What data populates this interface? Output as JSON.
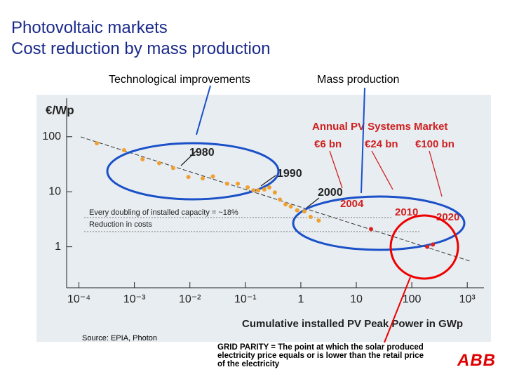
{
  "title": "Photovoltaic markets",
  "subtitle": "Cost reduction by mass production",
  "label_left": "Technological improvements",
  "label_right": "Mass production",
  "source": "Source: EPIA, Photon",
  "note": "GRID PARITY = The point at which the solar produced electricity price equals or is lower than the retail price of the electricity",
  "logo": "ABB",
  "chart_data": {
    "type": "scatter",
    "y_label": "€/Wp",
    "x_label": "Cumulative installed PV Peak Power in GWp",
    "x_log": true,
    "y_log": true,
    "xlim": [
      6e-05,
      2000
    ],
    "ylim": [
      0.18,
      500
    ],
    "xticks": [
      {
        "value": 0.0001,
        "label": "10⁻⁴"
      },
      {
        "value": 0.001,
        "label": "10⁻³"
      },
      {
        "value": 0.01,
        "label": "10⁻²"
      },
      {
        "value": 0.1,
        "label": "10⁻¹"
      },
      1,
      10,
      100,
      {
        "value": 1000,
        "label": "10³"
      }
    ],
    "yticks": [
      1,
      10,
      100
    ],
    "annotations": [
      "1980",
      "1990",
      "2000",
      "2004",
      "2010",
      "2020",
      "Annual PV Systems Market",
      "€6 bn",
      "€24 bn",
      "€100 bn",
      "Every doubling of installed capacity = ~18%",
      "Reduction in costs"
    ],
    "series": [
      {
        "color": "#f0a030",
        "x": [
          0.00021,
          0.00065,
          0.0014,
          0.0028,
          0.005,
          0.0094,
          0.017,
          0.026,
          0.047,
          0.073,
          0.11,
          0.14,
          0.17,
          0.22,
          0.27,
          0.34,
          0.42,
          0.53,
          0.66,
          0.86,
          1.16,
          1.5,
          2.1
        ],
        "values": [
          76,
          57,
          39,
          33,
          27,
          18.6,
          17.5,
          19,
          14,
          14,
          12,
          10.6,
          10.6,
          11,
          12,
          9.7,
          7.2,
          5.9,
          5.4,
          4.6,
          4.4,
          3.5,
          3.0
        ]
      },
      {
        "color": "#e02020",
        "x": [
          18.4,
          190,
          240
        ],
        "values": [
          2.1,
          1.0,
          1.1
        ]
      }
    ]
  }
}
